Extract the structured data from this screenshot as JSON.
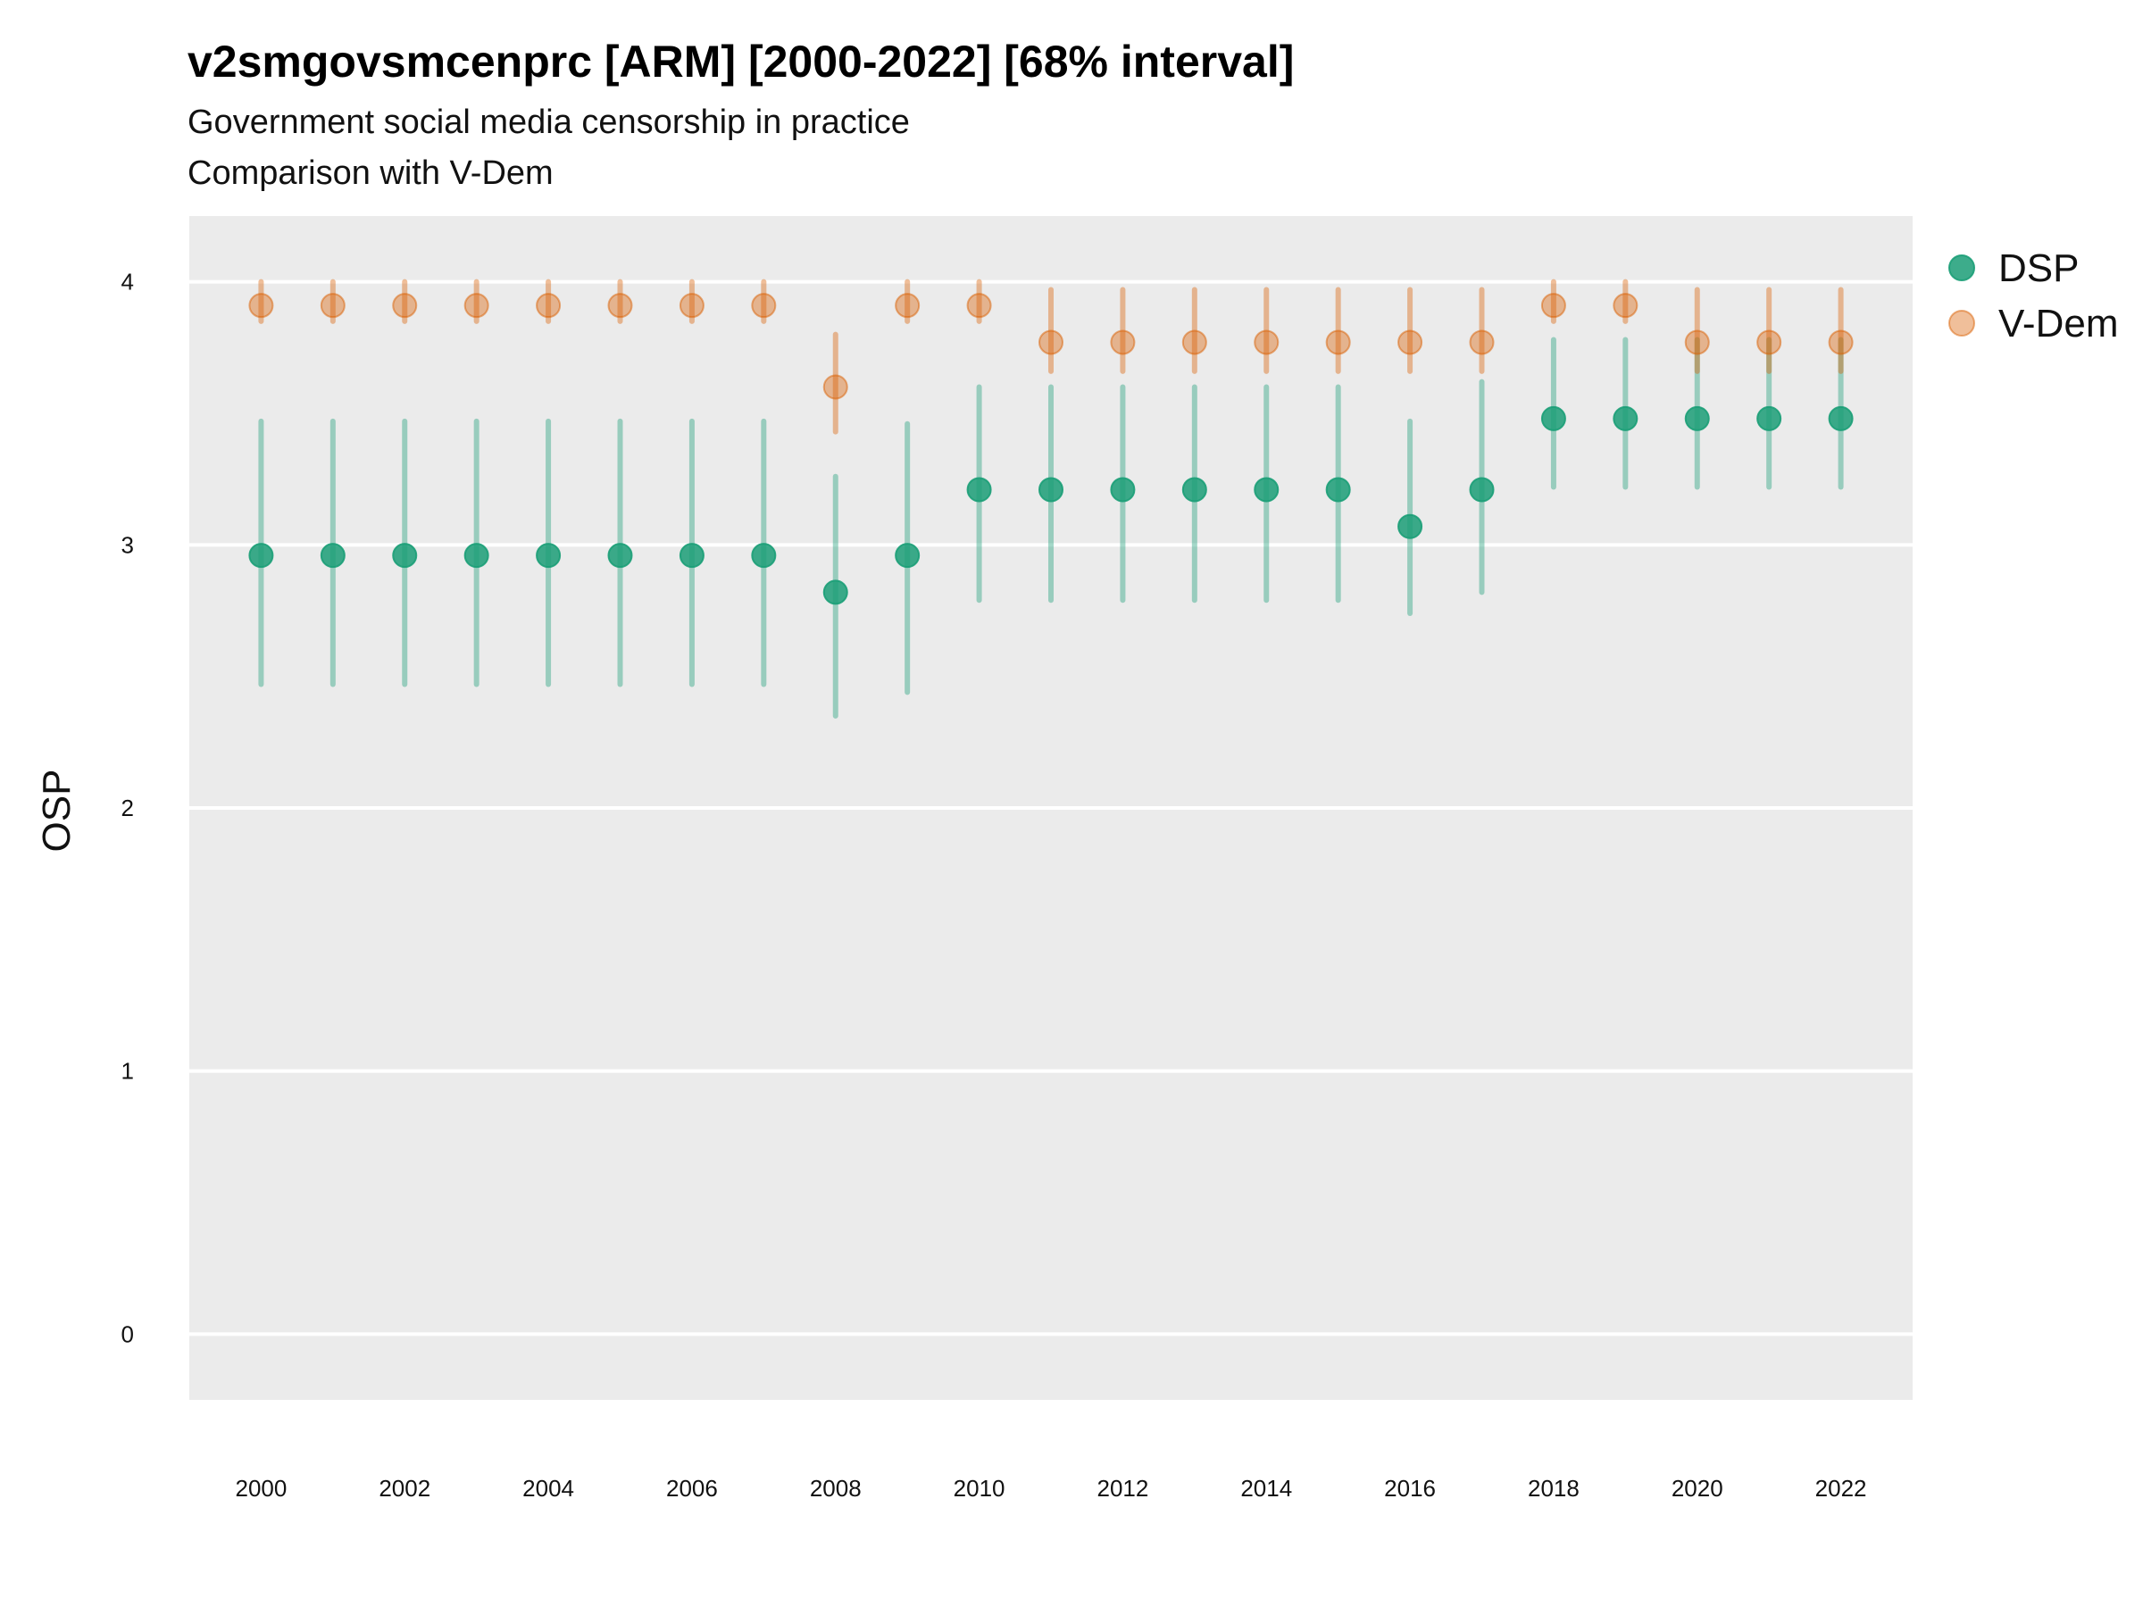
{
  "chart_data": {
    "type": "scatter",
    "title": "v2smgovsmcenprc [ARM] [2000-2022] [68% interval]",
    "subtitle": "Government social media censorship in practice",
    "caption": "Comparison with V-Dem",
    "ylabel": "OSP",
    "xlabel": "",
    "ylim": [
      -0.25,
      4.25
    ],
    "yticks": [
      0,
      1,
      2,
      3,
      4
    ],
    "xticks": [
      2000,
      2002,
      2004,
      2006,
      2008,
      2010,
      2012,
      2014,
      2016,
      2018,
      2020,
      2022
    ],
    "x": [
      2000,
      2001,
      2002,
      2003,
      2004,
      2005,
      2006,
      2007,
      2008,
      2009,
      2010,
      2011,
      2012,
      2013,
      2014,
      2015,
      2016,
      2017,
      2018,
      2019,
      2020,
      2021,
      2022
    ],
    "grid": true,
    "legend_position": "right",
    "series": [
      {
        "name": "DSP",
        "color": "#1b9e77",
        "values": [
          2.96,
          2.96,
          2.96,
          2.96,
          2.96,
          2.96,
          2.96,
          2.96,
          2.82,
          2.96,
          3.21,
          3.21,
          3.21,
          3.21,
          3.21,
          3.21,
          3.07,
          3.21,
          3.48,
          3.48,
          3.48,
          3.48,
          3.48
        ],
        "lower": [
          2.47,
          2.47,
          2.47,
          2.47,
          2.47,
          2.47,
          2.47,
          2.47,
          2.35,
          2.44,
          2.79,
          2.79,
          2.79,
          2.79,
          2.79,
          2.79,
          2.74,
          2.82,
          3.22,
          3.22,
          3.22,
          3.22,
          3.22
        ],
        "upper": [
          3.47,
          3.47,
          3.47,
          3.47,
          3.47,
          3.47,
          3.47,
          3.47,
          3.26,
          3.46,
          3.6,
          3.6,
          3.6,
          3.6,
          3.6,
          3.6,
          3.47,
          3.62,
          3.78,
          3.78,
          3.78,
          3.78,
          3.78
        ]
      },
      {
        "name": "V-Dem",
        "color": "#d95f02",
        "values": [
          3.91,
          3.91,
          3.91,
          3.91,
          3.91,
          3.91,
          3.91,
          3.91,
          3.6,
          3.91,
          3.91,
          3.77,
          3.77,
          3.77,
          3.77,
          3.77,
          3.77,
          3.77,
          3.91,
          3.91,
          3.77,
          3.77,
          3.77
        ],
        "lower": [
          3.85,
          3.85,
          3.85,
          3.85,
          3.85,
          3.85,
          3.85,
          3.85,
          3.43,
          3.85,
          3.85,
          3.66,
          3.66,
          3.66,
          3.66,
          3.66,
          3.66,
          3.66,
          3.85,
          3.85,
          3.66,
          3.66,
          3.66
        ],
        "upper": [
          4.0,
          4.0,
          4.0,
          4.0,
          4.0,
          4.0,
          4.0,
          4.0,
          3.8,
          4.0,
          4.0,
          3.97,
          3.97,
          3.97,
          3.97,
          3.97,
          3.97,
          3.97,
          4.0,
          4.0,
          3.97,
          3.97,
          3.97
        ]
      }
    ]
  }
}
